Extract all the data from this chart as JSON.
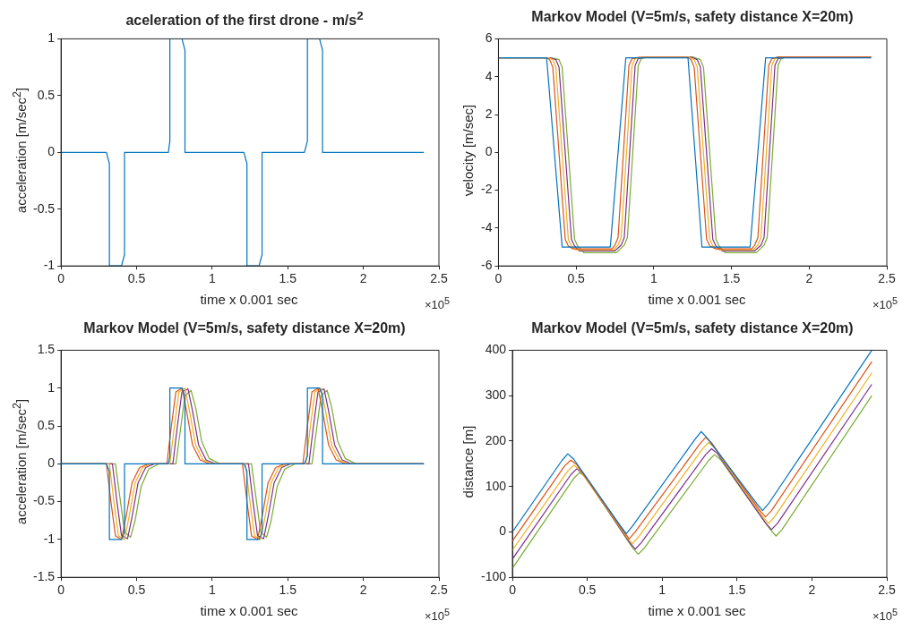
{
  "chart_data": [
    {
      "type": "line",
      "title": "aceleration of the first drone - m/s$^{2}$",
      "xlabel": "time x 0.001 sec",
      "ylabel": "acceleration [m/sec$^{2}$]",
      "annotations": [
        "×10$^{5}$"
      ],
      "xlim": [
        0,
        2.5
      ],
      "xticks": [
        0,
        0.5,
        1,
        1.5,
        2,
        2.5
      ],
      "ylim": [
        -1,
        1
      ],
      "yticks": [
        -1,
        -0.5,
        0,
        0.5,
        1
      ],
      "series": [
        {
          "color": "#0072bd",
          "x": [
            0,
            0.3,
            0.32,
            0.32,
            0.4,
            0.42,
            0.42,
            0.71,
            0.72,
            0.72,
            0.8,
            0.82,
            0.82,
            1.21,
            1.23,
            1.23,
            1.31,
            1.33,
            1.33,
            1.61,
            1.63,
            1.63,
            1.71,
            1.73,
            1.73,
            2.4
          ],
          "values": [
            0,
            0,
            -0.1,
            -1,
            -1,
            -0.9,
            0,
            0,
            0.1,
            1,
            1,
            0.9,
            0,
            0,
            -0.1,
            -1,
            -1,
            -0.9,
            0,
            0,
            0.1,
            1,
            1,
            0.9,
            0,
            0
          ]
        }
      ]
    },
    {
      "type": "line",
      "title": "Markov Model (V=5m/s, safety distance X=20m)",
      "xlabel": "time x 0.001 sec",
      "ylabel": "velocity [m/sec]",
      "annotations": [
        "×10$^{5}$"
      ],
      "xlim": [
        0,
        2.5
      ],
      "xticks": [
        0,
        0.5,
        1,
        1.5,
        2,
        2.5
      ],
      "ylim": [
        -6,
        6
      ],
      "yticks": [
        -6,
        -4,
        -2,
        0,
        2,
        4,
        6
      ],
      "series": [
        {
          "color": "#0072bd",
          "x": [
            0,
            0.31,
            0.41,
            0.72,
            0.82,
            1.22,
            1.31,
            1.62,
            1.72,
            2.4
          ],
          "values": [
            5,
            5,
            -5,
            -5,
            5,
            5,
            -5,
            -5,
            5,
            5
          ]
        },
        {
          "color": "#d95319",
          "x": [
            0,
            0.31,
            0.33,
            0.35,
            0.43,
            0.45,
            0.48,
            0.73,
            0.75,
            0.77,
            0.84,
            0.86,
            0.9,
            1.22,
            1.24,
            1.26,
            1.34,
            1.36,
            1.4,
            1.63,
            1.65,
            1.67,
            1.74,
            1.76,
            1.8,
            2.4
          ],
          "values": [
            5,
            5,
            4.9,
            4.5,
            -4.6,
            -4.95,
            -5.1,
            -5.1,
            -4.9,
            -4.5,
            4.6,
            4.95,
            5.02,
            5.02,
            4.9,
            4.5,
            -4.6,
            -4.95,
            -5.1,
            -5.1,
            -4.9,
            -4.5,
            4.6,
            4.95,
            5.05,
            5.05
          ]
        },
        {
          "color": "#edb120",
          "x": [
            0,
            0.32,
            0.35,
            0.37,
            0.45,
            0.47,
            0.5,
            0.74,
            0.77,
            0.79,
            0.86,
            0.88,
            0.92,
            1.23,
            1.26,
            1.28,
            1.36,
            1.38,
            1.42,
            1.64,
            1.67,
            1.69,
            1.76,
            1.78,
            1.82,
            2.4
          ],
          "values": [
            5,
            5,
            4.9,
            4.5,
            -4.6,
            -4.95,
            -5.15,
            -5.15,
            -4.9,
            -4.5,
            4.6,
            4.95,
            5.03,
            5.03,
            4.9,
            4.5,
            -4.6,
            -4.95,
            -5.15,
            -5.15,
            -4.9,
            -4.5,
            4.6,
            4.95,
            5.05,
            5.05
          ]
        },
        {
          "color": "#7e2f8e",
          "x": [
            0,
            0.33,
            0.37,
            0.39,
            0.47,
            0.49,
            0.52,
            0.75,
            0.79,
            0.81,
            0.88,
            0.9,
            0.94,
            1.24,
            1.28,
            1.3,
            1.38,
            1.4,
            1.44,
            1.65,
            1.69,
            1.71,
            1.78,
            1.8,
            1.84,
            2.4
          ],
          "values": [
            5,
            5,
            4.9,
            4.5,
            -4.6,
            -4.95,
            -5.2,
            -5.2,
            -4.9,
            -4.5,
            4.6,
            4.95,
            5.04,
            5.04,
            4.9,
            4.5,
            -4.6,
            -4.95,
            -5.2,
            -5.2,
            -4.9,
            -4.5,
            4.6,
            4.95,
            5.05,
            5.05
          ]
        },
        {
          "color": "#77ac30",
          "x": [
            0,
            0.34,
            0.39,
            0.41,
            0.49,
            0.51,
            0.55,
            0.76,
            0.81,
            0.83,
            0.9,
            0.92,
            0.96,
            1.25,
            1.3,
            1.32,
            1.4,
            1.42,
            1.46,
            1.66,
            1.71,
            1.73,
            1.8,
            1.82,
            1.86,
            2.4
          ],
          "values": [
            5,
            5,
            4.9,
            4.5,
            -4.6,
            -4.95,
            -5.3,
            -5.3,
            -4.9,
            -4.5,
            4.6,
            4.95,
            5.05,
            5.05,
            4.9,
            4.5,
            -4.6,
            -4.95,
            -5.3,
            -5.3,
            -4.9,
            -4.5,
            4.6,
            4.95,
            5.05,
            5.05
          ]
        }
      ]
    },
    {
      "type": "line",
      "title": "Markov Model (V=5m/s, safety distance X=20m)",
      "xlabel": "time x 0.001 sec",
      "ylabel": "acceleration [m/sec$^{2}$]",
      "annotations": [
        "×10$^{5}$"
      ],
      "xlim": [
        0,
        2.5
      ],
      "xticks": [
        0,
        0.5,
        1,
        1.5,
        2,
        2.5
      ],
      "ylim": [
        -1.5,
        1.5
      ],
      "yticks": [
        -1.5,
        -1,
        -0.5,
        0,
        0.5,
        1,
        1.5
      ],
      "series": [
        {
          "color": "#0072bd",
          "x": [
            0,
            0.3,
            0.32,
            0.32,
            0.4,
            0.42,
            0.42,
            0.71,
            0.72,
            0.72,
            0.8,
            0.82,
            0.82,
            1.21,
            1.23,
            1.23,
            1.31,
            1.33,
            1.33,
            1.61,
            1.63,
            1.63,
            1.71,
            1.73,
            1.73,
            2.4
          ],
          "values": [
            0,
            0,
            -0.1,
            -1,
            -1,
            -0.9,
            0,
            0,
            0.1,
            1,
            1,
            0.9,
            0,
            0,
            -0.1,
            -1,
            -1,
            -0.9,
            0,
            0,
            0.1,
            1,
            1,
            0.9,
            0,
            0
          ]
        },
        {
          "color": "#d95319",
          "x": [
            0,
            0.3,
            0.33,
            0.36,
            0.4,
            0.43,
            0.47,
            0.52,
            0.58,
            0.7,
            0.73,
            0.76,
            0.8,
            0.83,
            0.87,
            0.92,
            0.98,
            1.2,
            1.23,
            1.26,
            1.3,
            1.33,
            1.37,
            1.42,
            1.48,
            1.6,
            1.63,
            1.66,
            1.7,
            1.73,
            1.77,
            1.82,
            1.88,
            2.4
          ],
          "values": [
            0,
            0,
            -0.5,
            -0.95,
            -1,
            -0.7,
            -0.25,
            -0.05,
            0,
            0,
            0.5,
            0.95,
            1,
            0.7,
            0.25,
            0.05,
            0,
            0,
            -0.5,
            -0.95,
            -1,
            -0.7,
            -0.25,
            -0.05,
            0,
            0,
            0.5,
            0.95,
            1,
            0.7,
            0.25,
            0.05,
            0,
            0
          ]
        },
        {
          "color": "#edb120",
          "x": [
            0,
            0.32,
            0.35,
            0.38,
            0.42,
            0.45,
            0.49,
            0.54,
            0.6,
            0.72,
            0.75,
            0.78,
            0.82,
            0.85,
            0.89,
            0.94,
            1,
            1.22,
            1.25,
            1.28,
            1.32,
            1.35,
            1.39,
            1.44,
            1.5,
            1.62,
            1.65,
            1.68,
            1.72,
            1.75,
            1.79,
            1.84,
            1.9,
            2.4
          ],
          "values": [
            0,
            0,
            -0.5,
            -0.95,
            -1,
            -0.7,
            -0.25,
            -0.05,
            0,
            0,
            0.5,
            0.95,
            1,
            0.7,
            0.25,
            0.05,
            0,
            0,
            -0.5,
            -0.95,
            -1,
            -0.7,
            -0.25,
            -0.05,
            0,
            0,
            0.5,
            0.95,
            1,
            0.7,
            0.25,
            0.05,
            0,
            0
          ]
        },
        {
          "color": "#7e2f8e",
          "x": [
            0,
            0.34,
            0.37,
            0.4,
            0.44,
            0.47,
            0.51,
            0.56,
            0.62,
            0.74,
            0.77,
            0.8,
            0.84,
            0.87,
            0.91,
            0.96,
            1.02,
            1.24,
            1.27,
            1.3,
            1.34,
            1.37,
            1.41,
            1.46,
            1.52,
            1.64,
            1.67,
            1.7,
            1.74,
            1.77,
            1.81,
            1.86,
            1.92,
            2.4
          ],
          "values": [
            0,
            0,
            -0.5,
            -0.95,
            -0.99,
            -0.7,
            -0.25,
            -0.05,
            0,
            0,
            0.5,
            0.95,
            0.99,
            0.7,
            0.25,
            0.05,
            0,
            0,
            -0.5,
            -0.95,
            -0.99,
            -0.7,
            -0.25,
            -0.05,
            0,
            0,
            0.5,
            0.95,
            0.99,
            0.7,
            0.25,
            0.05,
            0,
            0
          ]
        },
        {
          "color": "#77ac30",
          "x": [
            0,
            0.36,
            0.39,
            0.42,
            0.46,
            0.49,
            0.53,
            0.58,
            0.65,
            0.76,
            0.79,
            0.82,
            0.86,
            0.89,
            0.93,
            0.98,
            1.05,
            1.26,
            1.29,
            1.32,
            1.36,
            1.39,
            1.43,
            1.48,
            1.55,
            1.66,
            1.69,
            1.72,
            1.76,
            1.79,
            1.83,
            1.88,
            1.95,
            2.4
          ],
          "values": [
            0,
            0,
            -0.45,
            -0.9,
            -0.97,
            -0.75,
            -0.3,
            -0.07,
            0,
            0,
            0.45,
            0.9,
            0.97,
            0.75,
            0.3,
            0.07,
            0,
            0,
            -0.45,
            -0.9,
            -0.97,
            -0.75,
            -0.3,
            -0.07,
            0,
            0,
            0.45,
            0.9,
            0.97,
            0.75,
            0.3,
            0.07,
            0,
            0
          ]
        }
      ]
    },
    {
      "type": "line",
      "title": "Markov Model (V=5m/s, safety distance X=20m)",
      "xlabel": "time x 0.001 sec",
      "ylabel": "distance [m]",
      "annotations": [
        "×10$^{5}$"
      ],
      "xlim": [
        0,
        2.5
      ],
      "xticks": [
        0,
        0.5,
        1,
        1.5,
        2,
        2.5
      ],
      "ylim": [
        -100,
        400
      ],
      "yticks": [
        -100,
        0,
        100,
        200,
        300,
        400
      ],
      "series": [
        {
          "color": "#0072bd",
          "x": [
            0,
            0.33,
            0.37,
            0.41,
            0.72,
            0.76,
            0.8,
            1.22,
            1.26,
            1.3,
            1.63,
            1.67,
            1.71,
            2.4
          ],
          "values": [
            0,
            157,
            172,
            160,
            14,
            -4,
            12,
            204,
            221,
            207,
            63,
            47,
            62,
            400
          ]
        },
        {
          "color": "#d95319",
          "x": [
            0,
            0.35,
            0.39,
            0.43,
            0.74,
            0.78,
            0.82,
            1.25,
            1.29,
            1.33,
            1.65,
            1.69,
            1.73,
            2.4
          ],
          "values": [
            -20,
            146,
            158,
            148,
            2,
            -15,
            0,
            193,
            208,
            196,
            48,
            33,
            47,
            375
          ]
        },
        {
          "color": "#edb120",
          "x": [
            0,
            0.37,
            0.41,
            0.45,
            0.76,
            0.8,
            0.84,
            1.27,
            1.31,
            1.35,
            1.67,
            1.71,
            1.75,
            2.4
          ],
          "values": [
            -40,
            134,
            147,
            136,
            -10,
            -26,
            -12,
            183,
            197,
            185,
            34,
            19,
            33,
            350
          ]
        },
        {
          "color": "#7e2f8e",
          "x": [
            0,
            0.39,
            0.43,
            0.47,
            0.78,
            0.82,
            0.86,
            1.29,
            1.33,
            1.37,
            1.69,
            1.73,
            1.77,
            2.4
          ],
          "values": [
            -60,
            126,
            139,
            128,
            -22,
            -38,
            -24,
            170,
            183,
            172,
            20,
            5,
            19,
            325
          ]
        },
        {
          "color": "#77ac30",
          "x": [
            0,
            0.41,
            0.45,
            0.49,
            0.8,
            0.84,
            0.88,
            1.31,
            1.35,
            1.39,
            1.72,
            1.76,
            1.8,
            2.4
          ],
          "values": [
            -80,
            118,
            131,
            120,
            -34,
            -49,
            -36,
            157,
            170,
            159,
            6,
            -9,
            5,
            300
          ]
        }
      ]
    }
  ]
}
